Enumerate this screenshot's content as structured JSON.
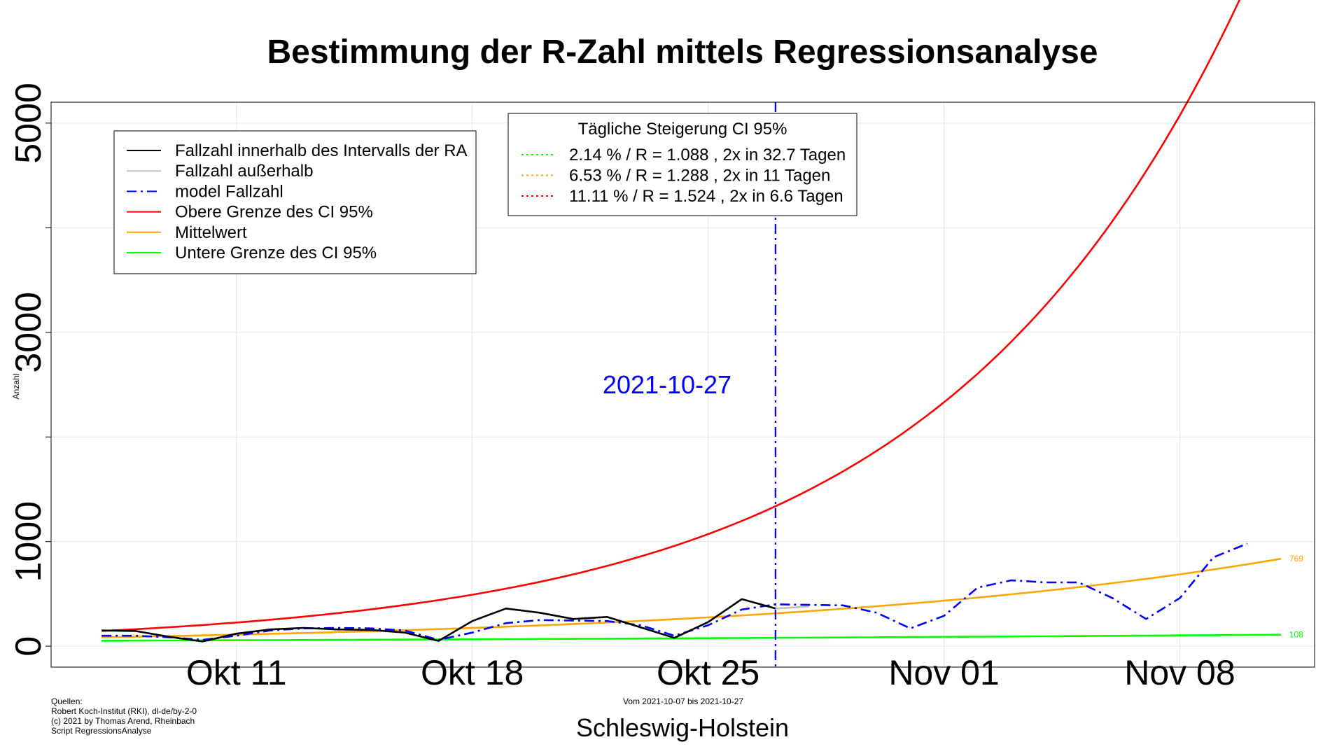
{
  "chart_data": {
    "type": "line",
    "title": "Bestimmung der R-Zahl mittels Regressionsanalyse",
    "ylabel": "Anzahl",
    "xlabel": "Schleswig-Holstein",
    "range_note": "Vom 2021-10-07 bis 2021-10-27",
    "y_ticks": [
      0,
      1000,
      3000,
      5000
    ],
    "x_ticks": [
      {
        "day": 4,
        "label": "Okt 11"
      },
      {
        "day": 11,
        "label": "Okt 18"
      },
      {
        "day": 18,
        "label": "Okt 25"
      },
      {
        "day": 25,
        "label": "Nov 01"
      },
      {
        "day": 32,
        "label": "Nov 08"
      }
    ],
    "xlim": [
      -1.5,
      36
    ],
    "ylim": [
      -200,
      5200
    ],
    "vline": {
      "day": 20,
      "label": "2021-10-27",
      "color": "#0000ff"
    },
    "series": [
      {
        "name": "Fallzahl innerhalb des Intervalls der RA",
        "color": "#000000",
        "style": "solid",
        "x": [
          0,
          1,
          2,
          3,
          4,
          5,
          6,
          7,
          8,
          9,
          10,
          11,
          12,
          13,
          14,
          15,
          16,
          17,
          18,
          19,
          20
        ],
        "y": [
          150,
          145,
          90,
          45,
          120,
          160,
          175,
          160,
          155,
          130,
          50,
          240,
          360,
          320,
          260,
          280,
          180,
          80,
          230,
          450,
          360
        ]
      },
      {
        "name": "Fallzahl außerhalb",
        "color": "#c0c0c0",
        "style": "solid",
        "x": [
          20,
          21
        ],
        "y": [
          360,
          380
        ]
      },
      {
        "name": "model Fallzahl",
        "color": "#0000ff",
        "style": "dashdot",
        "x": [
          0,
          1,
          2,
          3,
          4,
          5,
          6,
          7,
          8,
          9,
          10,
          11,
          12,
          13,
          14,
          15,
          16,
          17,
          18,
          19,
          20,
          21,
          22,
          23,
          24,
          25,
          26,
          27,
          28,
          29,
          30,
          31,
          32,
          33,
          34
        ],
        "y": [
          100,
          100,
          85,
          60,
          100,
          150,
          170,
          175,
          170,
          150,
          60,
          130,
          220,
          250,
          245,
          240,
          200,
          100,
          200,
          350,
          400,
          395,
          390,
          320,
          170,
          290,
          560,
          630,
          610,
          610,
          460,
          260,
          460,
          850,
          980
        ]
      },
      {
        "name": "Obere Grenze des CI 95%",
        "color": "#ff0000",
        "style": "solid",
        "function": "exp",
        "a": 145,
        "rate": 0.1111,
        "x_range": [
          0,
          35
        ]
      },
      {
        "name": "Mittelwert",
        "color": "#ffa500",
        "style": "solid",
        "function": "exp",
        "a": 85,
        "rate": 0.0653,
        "x_range": [
          0,
          35
        ],
        "end_label": "769"
      },
      {
        "name": "Untere Grenze des CI 95%",
        "color": "#00ff00",
        "style": "solid",
        "function": "exp",
        "a": 52,
        "rate": 0.0214,
        "x_range": [
          0,
          35
        ],
        "end_label": "108"
      }
    ],
    "legend_position": "top-left",
    "grid": true,
    "ci_box": {
      "title": "Tägliche Steigerung CI  95%",
      "items": [
        {
          "color": "#00ff00",
          "text": "2.14 % / R = 1.088 , 2x in 32.7 Tagen"
        },
        {
          "color": "#ffa500",
          "text": "6.53 % / R = 1.288 , 2x in 11 Tagen"
        },
        {
          "color": "#ff0000",
          "text": "11.11 % / R = 1.524 , 2x in 6.6 Tagen"
        }
      ]
    }
  },
  "sources": [
    "Quellen:",
    "Robert Koch-Institut (RKI), dl-de/by-2-0",
    "(c) 2021 by Thomas Arend, Rheinbach",
    "Script RegressionsAnalyse"
  ]
}
